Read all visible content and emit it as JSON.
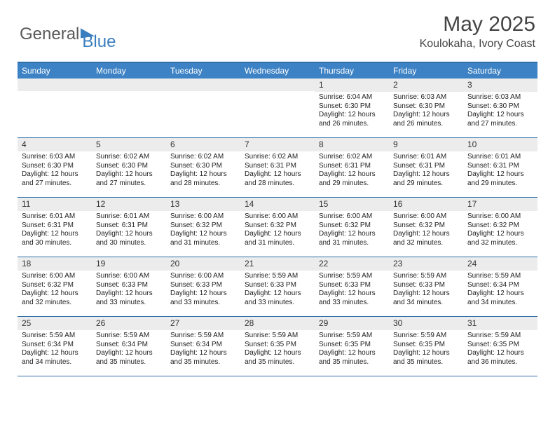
{
  "logo": {
    "text1": "General",
    "text2": "Blue"
  },
  "title": "May 2025",
  "subtitle": "Koulokaha, Ivory Coast",
  "colors": {
    "header_bg": "#3d82c4",
    "header_border": "#2f6fa8",
    "daynum_bg": "#ececec",
    "text": "#333333",
    "logo_accent": "#3a7ebf",
    "background": "#ffffff"
  },
  "typography": {
    "title_fontsize": 30,
    "subtitle_fontsize": 16,
    "dayheader_fontsize": 12,
    "daynum_fontsize": 12,
    "body_fontsize": 10
  },
  "day_headers": [
    "Sunday",
    "Monday",
    "Tuesday",
    "Wednesday",
    "Thursday",
    "Friday",
    "Saturday"
  ],
  "weeks": [
    [
      {
        "day": "",
        "lines": []
      },
      {
        "day": "",
        "lines": []
      },
      {
        "day": "",
        "lines": []
      },
      {
        "day": "",
        "lines": []
      },
      {
        "day": "1",
        "lines": [
          "Sunrise: 6:04 AM",
          "Sunset: 6:30 PM",
          "Daylight: 12 hours",
          "and 26 minutes."
        ]
      },
      {
        "day": "2",
        "lines": [
          "Sunrise: 6:03 AM",
          "Sunset: 6:30 PM",
          "Daylight: 12 hours",
          "and 26 minutes."
        ]
      },
      {
        "day": "3",
        "lines": [
          "Sunrise: 6:03 AM",
          "Sunset: 6:30 PM",
          "Daylight: 12 hours",
          "and 27 minutes."
        ]
      }
    ],
    [
      {
        "day": "4",
        "lines": [
          "Sunrise: 6:03 AM",
          "Sunset: 6:30 PM",
          "Daylight: 12 hours",
          "and 27 minutes."
        ]
      },
      {
        "day": "5",
        "lines": [
          "Sunrise: 6:02 AM",
          "Sunset: 6:30 PM",
          "Daylight: 12 hours",
          "and 27 minutes."
        ]
      },
      {
        "day": "6",
        "lines": [
          "Sunrise: 6:02 AM",
          "Sunset: 6:30 PM",
          "Daylight: 12 hours",
          "and 28 minutes."
        ]
      },
      {
        "day": "7",
        "lines": [
          "Sunrise: 6:02 AM",
          "Sunset: 6:31 PM",
          "Daylight: 12 hours",
          "and 28 minutes."
        ]
      },
      {
        "day": "8",
        "lines": [
          "Sunrise: 6:02 AM",
          "Sunset: 6:31 PM",
          "Daylight: 12 hours",
          "and 29 minutes."
        ]
      },
      {
        "day": "9",
        "lines": [
          "Sunrise: 6:01 AM",
          "Sunset: 6:31 PM",
          "Daylight: 12 hours",
          "and 29 minutes."
        ]
      },
      {
        "day": "10",
        "lines": [
          "Sunrise: 6:01 AM",
          "Sunset: 6:31 PM",
          "Daylight: 12 hours",
          "and 29 minutes."
        ]
      }
    ],
    [
      {
        "day": "11",
        "lines": [
          "Sunrise: 6:01 AM",
          "Sunset: 6:31 PM",
          "Daylight: 12 hours",
          "and 30 minutes."
        ]
      },
      {
        "day": "12",
        "lines": [
          "Sunrise: 6:01 AM",
          "Sunset: 6:31 PM",
          "Daylight: 12 hours",
          "and 30 minutes."
        ]
      },
      {
        "day": "13",
        "lines": [
          "Sunrise: 6:00 AM",
          "Sunset: 6:32 PM",
          "Daylight: 12 hours",
          "and 31 minutes."
        ]
      },
      {
        "day": "14",
        "lines": [
          "Sunrise: 6:00 AM",
          "Sunset: 6:32 PM",
          "Daylight: 12 hours",
          "and 31 minutes."
        ]
      },
      {
        "day": "15",
        "lines": [
          "Sunrise: 6:00 AM",
          "Sunset: 6:32 PM",
          "Daylight: 12 hours",
          "and 31 minutes."
        ]
      },
      {
        "day": "16",
        "lines": [
          "Sunrise: 6:00 AM",
          "Sunset: 6:32 PM",
          "Daylight: 12 hours",
          "and 32 minutes."
        ]
      },
      {
        "day": "17",
        "lines": [
          "Sunrise: 6:00 AM",
          "Sunset: 6:32 PM",
          "Daylight: 12 hours",
          "and 32 minutes."
        ]
      }
    ],
    [
      {
        "day": "18",
        "lines": [
          "Sunrise: 6:00 AM",
          "Sunset: 6:32 PM",
          "Daylight: 12 hours",
          "and 32 minutes."
        ]
      },
      {
        "day": "19",
        "lines": [
          "Sunrise: 6:00 AM",
          "Sunset: 6:33 PM",
          "Daylight: 12 hours",
          "and 33 minutes."
        ]
      },
      {
        "day": "20",
        "lines": [
          "Sunrise: 6:00 AM",
          "Sunset: 6:33 PM",
          "Daylight: 12 hours",
          "and 33 minutes."
        ]
      },
      {
        "day": "21",
        "lines": [
          "Sunrise: 5:59 AM",
          "Sunset: 6:33 PM",
          "Daylight: 12 hours",
          "and 33 minutes."
        ]
      },
      {
        "day": "22",
        "lines": [
          "Sunrise: 5:59 AM",
          "Sunset: 6:33 PM",
          "Daylight: 12 hours",
          "and 33 minutes."
        ]
      },
      {
        "day": "23",
        "lines": [
          "Sunrise: 5:59 AM",
          "Sunset: 6:33 PM",
          "Daylight: 12 hours",
          "and 34 minutes."
        ]
      },
      {
        "day": "24",
        "lines": [
          "Sunrise: 5:59 AM",
          "Sunset: 6:34 PM",
          "Daylight: 12 hours",
          "and 34 minutes."
        ]
      }
    ],
    [
      {
        "day": "25",
        "lines": [
          "Sunrise: 5:59 AM",
          "Sunset: 6:34 PM",
          "Daylight: 12 hours",
          "and 34 minutes."
        ]
      },
      {
        "day": "26",
        "lines": [
          "Sunrise: 5:59 AM",
          "Sunset: 6:34 PM",
          "Daylight: 12 hours",
          "and 35 minutes."
        ]
      },
      {
        "day": "27",
        "lines": [
          "Sunrise: 5:59 AM",
          "Sunset: 6:34 PM",
          "Daylight: 12 hours",
          "and 35 minutes."
        ]
      },
      {
        "day": "28",
        "lines": [
          "Sunrise: 5:59 AM",
          "Sunset: 6:35 PM",
          "Daylight: 12 hours",
          "and 35 minutes."
        ]
      },
      {
        "day": "29",
        "lines": [
          "Sunrise: 5:59 AM",
          "Sunset: 6:35 PM",
          "Daylight: 12 hours",
          "and 35 minutes."
        ]
      },
      {
        "day": "30",
        "lines": [
          "Sunrise: 5:59 AM",
          "Sunset: 6:35 PM",
          "Daylight: 12 hours",
          "and 35 minutes."
        ]
      },
      {
        "day": "31",
        "lines": [
          "Sunrise: 5:59 AM",
          "Sunset: 6:35 PM",
          "Daylight: 12 hours",
          "and 36 minutes."
        ]
      }
    ]
  ]
}
